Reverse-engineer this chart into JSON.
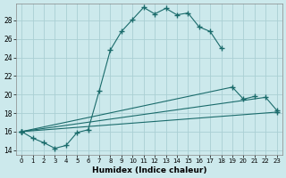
{
  "xlabel": "Humidex (Indice chaleur)",
  "background_color": "#cce9ec",
  "grid_color": "#aacfd4",
  "line_color": "#1a6b6b",
  "xlim": [
    -0.5,
    23.5
  ],
  "ylim": [
    13.5,
    29.8
  ],
  "yticks": [
    14,
    16,
    18,
    20,
    22,
    24,
    26,
    28
  ],
  "xticks": [
    0,
    1,
    2,
    3,
    4,
    5,
    6,
    7,
    8,
    9,
    10,
    11,
    12,
    13,
    14,
    15,
    16,
    17,
    18,
    19,
    20,
    21,
    22,
    23
  ],
  "series": [
    {
      "x": [
        0,
        1,
        2,
        3,
        4,
        5,
        6,
        7,
        8,
        9,
        10,
        11,
        12,
        13,
        14,
        15,
        16,
        17,
        18
      ],
      "y": [
        16.0,
        15.3,
        14.8,
        14.2,
        14.5,
        15.9,
        16.2,
        20.4,
        24.8,
        26.8,
        28.1,
        29.4,
        28.7,
        29.3,
        28.6,
        28.8,
        27.3,
        26.8,
        25.0
      ]
    },
    {
      "x": [
        0,
        19,
        20,
        21
      ],
      "y": [
        16.0,
        20.8,
        19.5,
        19.8
      ]
    },
    {
      "x": [
        0,
        22,
        23
      ],
      "y": [
        16.0,
        19.7,
        18.3
      ]
    },
    {
      "x": [
        0,
        23
      ],
      "y": [
        16.0,
        18.1
      ]
    }
  ]
}
